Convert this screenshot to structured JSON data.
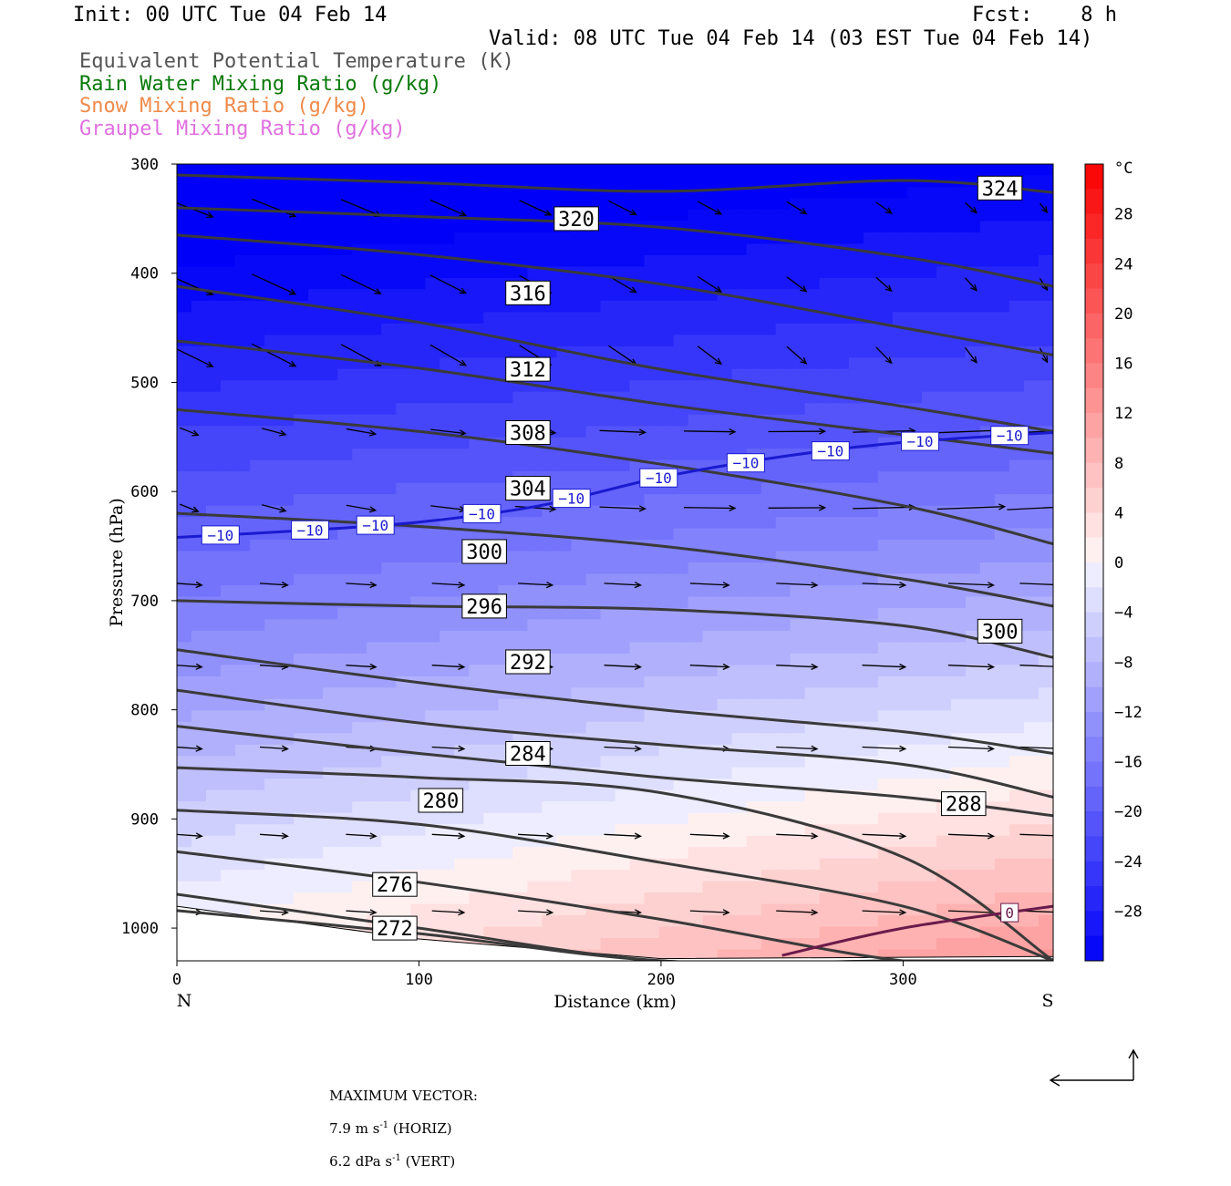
{
  "header": {
    "init": "Init: 00 UTC Tue 04 Feb 14",
    "fcst": "Fcst:    8 h",
    "valid": "Valid: 08 UTC Tue 04 Feb 14 (03 EST Tue 04 Feb 14)"
  },
  "legend": [
    {
      "label": "Equivalent Potential Temperature (K)",
      "color": "#555555"
    },
    {
      "label": "Rain Water Mixing Ratio (g/kg)",
      "color": "#0a7a0a"
    },
    {
      "label": "Snow Mixing Ratio (g/kg)",
      "color": "#f08a4a"
    },
    {
      "label": "Graupel Mixing Ratio (g/kg)",
      "color": "#e070e0"
    }
  ],
  "chart_data": {
    "type": "cross-section",
    "x_axis": {
      "label": "Distance (km)",
      "range": [
        0,
        362
      ],
      "ticks": [
        0,
        100,
        200,
        300
      ],
      "left_end": "N",
      "right_end": "S"
    },
    "y_axis": {
      "label": "Pressure (hPa)",
      "range": [
        300,
        1030
      ],
      "ticks": [
        300,
        400,
        500,
        600,
        700,
        800,
        900,
        1000
      ],
      "inverted": true
    },
    "colorbar": {
      "unit": "°C",
      "ticks": [
        28,
        24,
        20,
        16,
        12,
        8,
        4,
        0,
        -4,
        -8,
        -12,
        -16,
        -20,
        -24,
        -28
      ],
      "tick_labels": [
        "28",
        "24",
        "20",
        "16",
        "12",
        "8",
        "4",
        "0",
        "−4",
        "−8",
        "−12",
        "−16",
        "−20",
        "−24",
        "−28"
      ],
      "range": [
        -32,
        32
      ]
    },
    "theta_e_contours": [
      {
        "label": "324",
        "x": [
          0,
          100,
          200,
          300,
          362
        ],
        "p": [
          310,
          317,
          325,
          315,
          326
        ],
        "label_x": 340,
        "label_p": 322
      },
      {
        "label": "320",
        "x": [
          0,
          100,
          200,
          300,
          362
        ],
        "p": [
          340,
          348,
          358,
          385,
          412
        ],
        "label_x": 165,
        "label_p": 350
      },
      {
        "label": "316",
        "x": [
          0,
          100,
          200,
          300,
          362
        ],
        "p": [
          365,
          383,
          410,
          450,
          475
        ],
        "label_x": 145,
        "label_p": 418
      },
      {
        "label": "",
        "x": [
          0,
          100,
          200,
          300,
          362
        ],
        "p": [
          412,
          445,
          488,
          522,
          545
        ],
        "label_x": null,
        "label_p": null
      },
      {
        "label": "312",
        "x": [
          0,
          100,
          200,
          300,
          362
        ],
        "p": [
          462,
          487,
          520,
          548,
          565
        ],
        "label_x": 145,
        "label_p": 488
      },
      {
        "label": "308",
        "x": [
          0,
          100,
          200,
          300,
          362
        ],
        "p": [
          525,
          545,
          575,
          613,
          648
        ],
        "label_x": 145,
        "label_p": 546
      },
      {
        "label": "304",
        "x": [
          0,
          100,
          200,
          300,
          362
        ],
        "p": [
          620,
          632,
          650,
          680,
          705
        ],
        "label_x": 145,
        "label_p": 597
      },
      {
        "label": "300",
        "x": [
          0,
          100,
          200,
          300,
          362
        ],
        "p": [
          700,
          705,
          708,
          723,
          752
        ],
        "label_x": 127,
        "label_p": 655
      },
      {
        "label": "300",
        "x": [
          0,
          100,
          200,
          300,
          362
        ],
        "p": [
          745,
          775,
          800,
          820,
          840
        ],
        "label_x": 340,
        "label_p": 728
      },
      {
        "label": "296",
        "x": [
          0,
          100,
          200,
          300,
          362
        ],
        "p": [
          782,
          812,
          832,
          850,
          880
        ],
        "label_x": 127,
        "label_p": 705
      },
      {
        "label": "292",
        "x": [
          0,
          100,
          200,
          300,
          362
        ],
        "p": [
          815,
          840,
          862,
          880,
          897
        ],
        "label_x": 145,
        "label_p": 756
      },
      {
        "label": "284",
        "x": [
          0,
          100,
          200,
          300,
          362
        ],
        "p": [
          853,
          862,
          876,
          935,
          1030
        ],
        "label_x": 145,
        "label_p": 840
      },
      {
        "label": "288",
        "x": [
          0,
          100,
          200,
          300,
          362
        ],
        "p": [
          892,
          905,
          940,
          980,
          1030
        ],
        "label_x": 325,
        "label_p": 886
      },
      {
        "label": "280",
        "x": [
          0,
          100,
          200,
          300,
          362
        ],
        "p": [
          930,
          958,
          992,
          1030,
          1030
        ],
        "label_x": 109,
        "label_p": 883
      },
      {
        "label": "276",
        "x": [
          0,
          100,
          200,
          300,
          362
        ],
        "p": [
          969,
          1000,
          1030,
          1030,
          1030
        ],
        "label_x": 90,
        "label_p": 960
      },
      {
        "label": "272",
        "x": [
          0,
          100,
          200,
          300,
          362
        ],
        "p": [
          984,
          1005,
          1030,
          1030,
          1030
        ],
        "label_x": 90,
        "label_p": 1000
      }
    ],
    "isotherms": [
      {
        "value": -10,
        "label": "−10",
        "x": [
          0,
          50,
          100,
          150,
          200,
          250,
          300,
          362
        ],
        "p": [
          642,
          636,
          628,
          613,
          587,
          568,
          555,
          546
        ],
        "label_x": [
          18,
          55,
          82,
          126,
          163,
          199,
          235,
          270,
          307,
          344
        ],
        "color": "#1a1ad0"
      },
      {
        "value": 0,
        "label": "0",
        "x": [
          250,
          300,
          362
        ],
        "p": [
          1025,
          1000,
          980
        ],
        "label_x": [
          344
        ],
        "color": "#6a1a4a"
      }
    ],
    "vectors": {
      "max_horizontal": "7.9",
      "max_vertical": "6.2"
    }
  },
  "footer": {
    "title": "MAXIMUM VECTOR:",
    "horiz_value": "7.9 m s",
    "horiz_exp": "-1",
    "horiz_suffix": " (HORIZ)",
    "vert_value": "6.2 dPa s",
    "vert_exp": "-1",
    "vert_suffix": " (VERT)"
  }
}
